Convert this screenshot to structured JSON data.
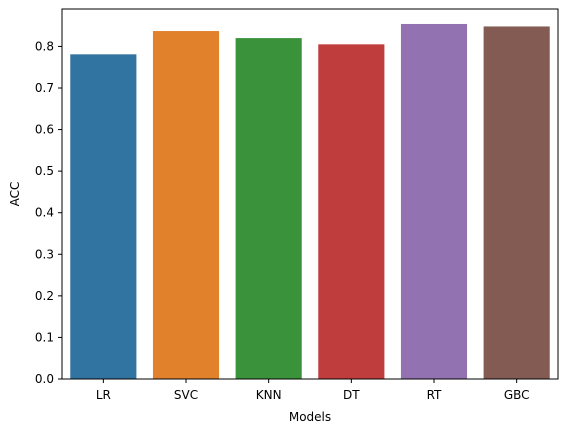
{
  "chart_data": {
    "type": "bar",
    "xlabel": "Models",
    "ylabel": "ACC",
    "categories": [
      "LR",
      "SVC",
      "KNN",
      "DT",
      "RT",
      "GBC"
    ],
    "values": [
      0.781,
      0.837,
      0.82,
      0.805,
      0.854,
      0.848
    ],
    "colors": [
      "#3274a1",
      "#e1812c",
      "#3a923a",
      "#c03d3e",
      "#9372b2",
      "#845b53"
    ],
    "ylim": [
      0,
      0.89
    ],
    "yticks": [
      0.0,
      0.1,
      0.2,
      0.3,
      0.4,
      0.5,
      0.6,
      0.7,
      0.8
    ],
    "ytick_labels": [
      "0.0",
      "0.1",
      "0.2",
      "0.3",
      "0.4",
      "0.5",
      "0.6",
      "0.7",
      "0.8"
    ],
    "grid": false,
    "legend": "none"
  }
}
